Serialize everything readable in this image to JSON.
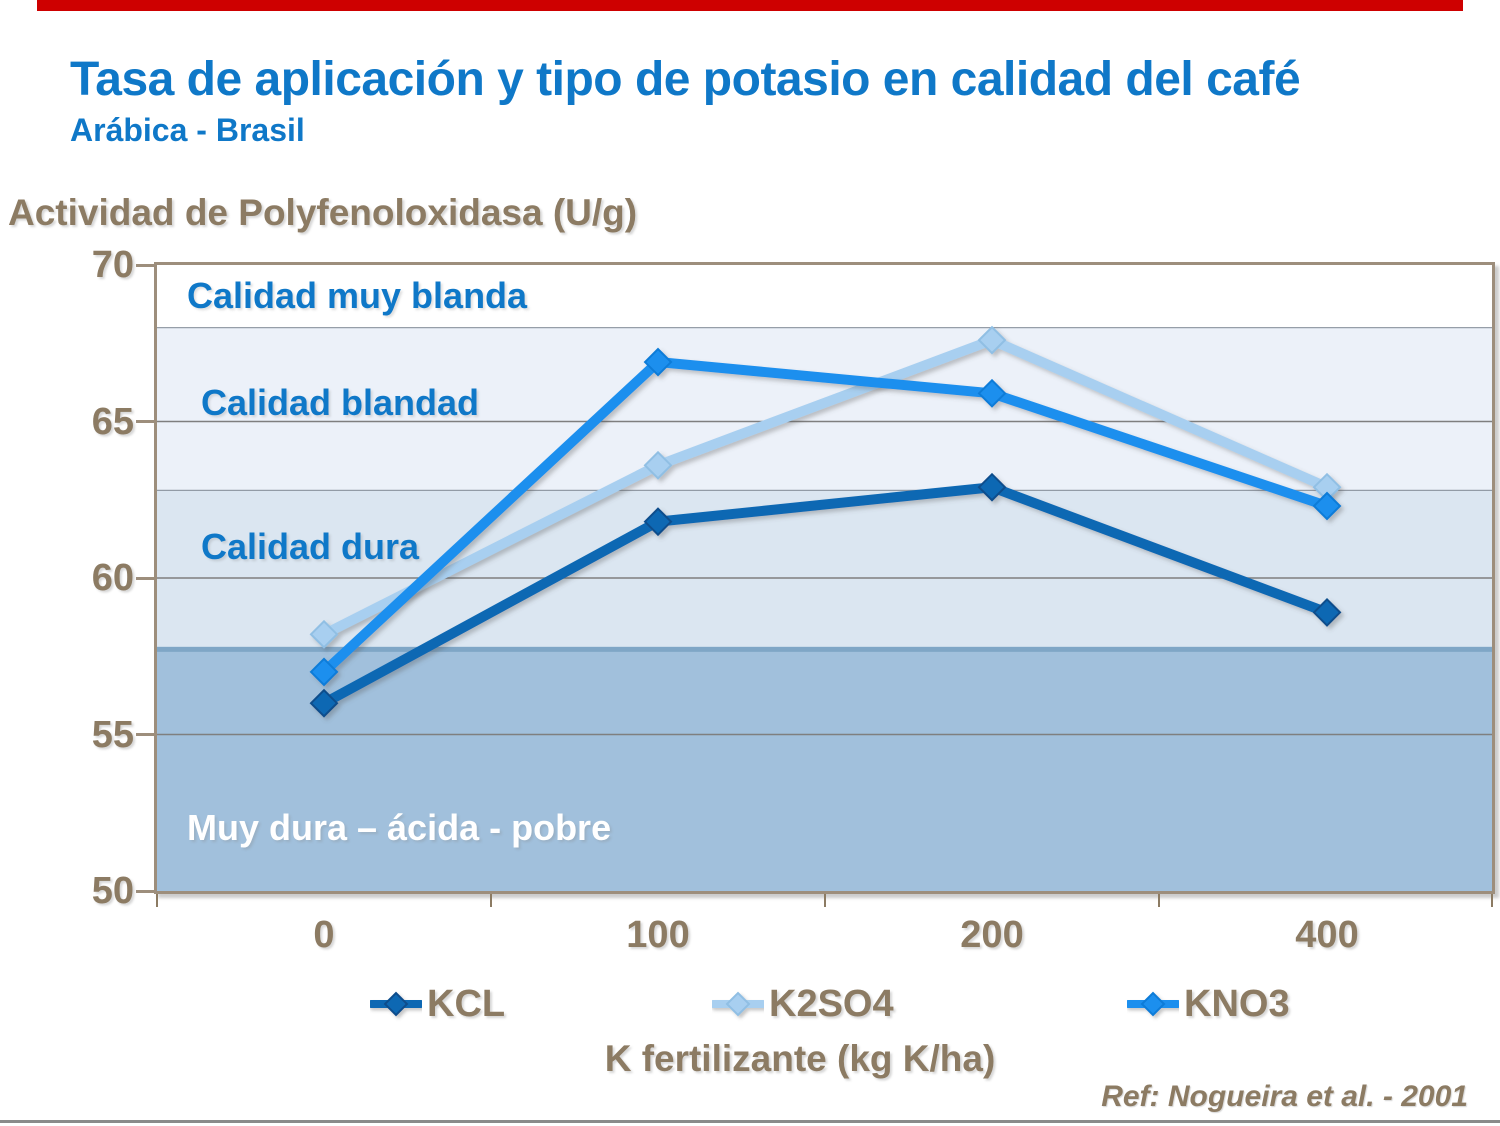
{
  "page": {
    "title": "Tasa de aplicación y tipo de potasio en calidad del café",
    "subtitle": "Arábica - Brasil",
    "ref_note": "Ref: Nogueira et al. - 2001",
    "top_bar_color": "#CE0000",
    "bottom_line_color": "#8A8A8A",
    "title_color": "#0F78C8",
    "axis_text_color": "#8C7B63",
    "frame_color": "#9D8E7C"
  },
  "chart_data": {
    "type": "line",
    "title": "Tasa de aplicación y tipo de potasio en calidad del café",
    "xlabel": "K fertilizante (kg K/ha)",
    "ylabel": "Actividad de Polyfenoloxidasa (U/g)",
    "categories": [
      "0",
      "100",
      "200",
      "400"
    ],
    "ylim": [
      50,
      70
    ],
    "yticks": [
      "70",
      "65",
      "60",
      "55",
      "50"
    ],
    "ytick_values": [
      70,
      65,
      60,
      55,
      50
    ],
    "gridline_values": [
      65,
      60,
      55
    ],
    "grid": "horizontal",
    "legend_position": "bottom",
    "series": [
      {
        "name": "KCL",
        "color": "#1168B3",
        "marker_stroke": "#0C4D8C",
        "marker": "diamond",
        "values": [
          56.0,
          61.8,
          62.9,
          58.9
        ]
      },
      {
        "name": "K2SO4",
        "color": "#A8CFF0",
        "marker_stroke": "#90BFE4",
        "marker": "diamond",
        "values": [
          58.2,
          63.6,
          67.6,
          62.9
        ]
      },
      {
        "name": "KNO3",
        "color": "#1E8FEE",
        "marker_stroke": "#0E7BD8",
        "marker": "diamond",
        "values": [
          57.0,
          66.9,
          65.9,
          62.3
        ]
      }
    ],
    "bands": [
      {
        "label": "Calidad muy blanda",
        "from": 68.0,
        "to": 70.0,
        "color": "#FFFFFF",
        "label_color": "#0F78C8",
        "label_value": 69.0
      },
      {
        "label": "Calidad blandad",
        "from": 62.8,
        "to": 68.0,
        "color": "#ECF1F9",
        "label_color": "#0F78C8",
        "label_value": 65.6
      },
      {
        "label": "Calidad dura",
        "from": 57.8,
        "to": 62.8,
        "color": "#DBE6F1",
        "label_color": "#0F78C8",
        "label_value": 61.0
      },
      {
        "label": "Muy dura – ácida - pobre",
        "from": 50.0,
        "to": 57.8,
        "color": "#A1C0DC",
        "label_color": "#FFFFFF",
        "label_value": 52.0,
        "top_edge_color": "#7FA6C6"
      }
    ],
    "gridline_color": "#7F7F7F",
    "boundary_line_color": "#7F8893"
  }
}
